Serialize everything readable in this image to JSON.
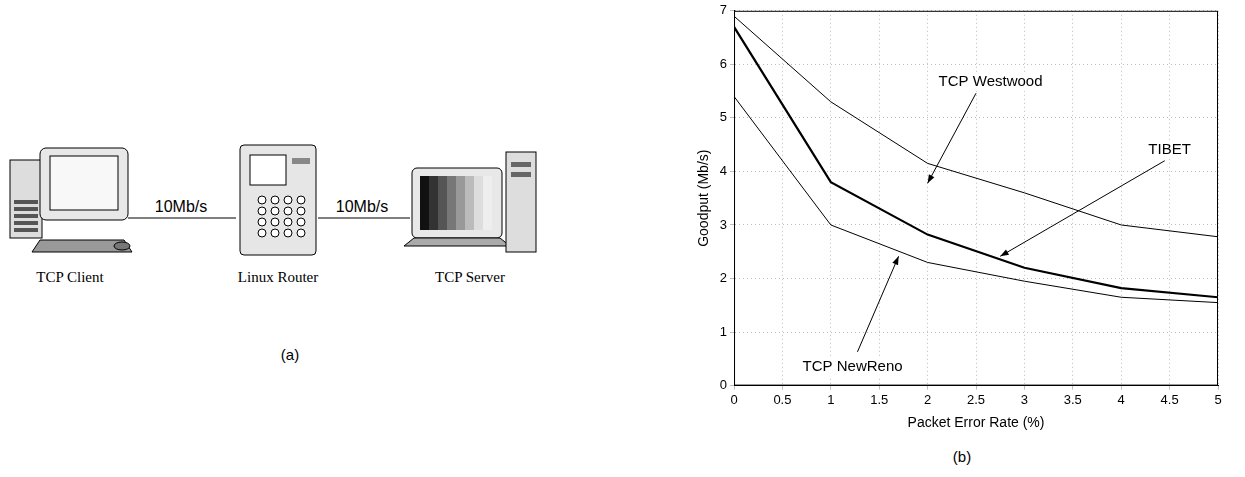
{
  "diagram": {
    "label": "(a)",
    "nodes": [
      "TCP Client",
      "Linux Router",
      "TCP Server"
    ],
    "links": [
      "10Mb/s",
      "10Mb/s"
    ]
  },
  "chart_data": {
    "type": "line",
    "panel_label": "(b)",
    "x_label": "Packet Error Rate (%)",
    "y_label": "Goodput (Mb/s)",
    "x": [
      0,
      1,
      2,
      3,
      4,
      5
    ],
    "series": [
      {
        "name": "TCP Westwood",
        "color": "#000000",
        "marker": "none",
        "line_style": "solid",
        "values": [
          6.9,
          5.3,
          4.15,
          3.6,
          3.0,
          2.78
        ]
      },
      {
        "name": "TIBET",
        "color": "#000000",
        "marker": "none",
        "line_style": "solid",
        "values": [
          6.7,
          3.8,
          2.82,
          2.2,
          1.82,
          1.65
        ]
      },
      {
        "name": "TCP NewReno",
        "color": "#000000",
        "marker": "none",
        "line_style": "solid",
        "values": [
          5.4,
          3.0,
          2.3,
          1.95,
          1.65,
          1.55
        ]
      }
    ],
    "xlim": [
      0,
      5
    ],
    "xticks": [
      0,
      0.5,
      1,
      1.5,
      2,
      2.5,
      3,
      3.5,
      4,
      4.5,
      5
    ],
    "ylim": [
      0,
      7
    ],
    "yticks": [
      0,
      1,
      2,
      3,
      4,
      5,
      6,
      7
    ],
    "grid": true
  }
}
